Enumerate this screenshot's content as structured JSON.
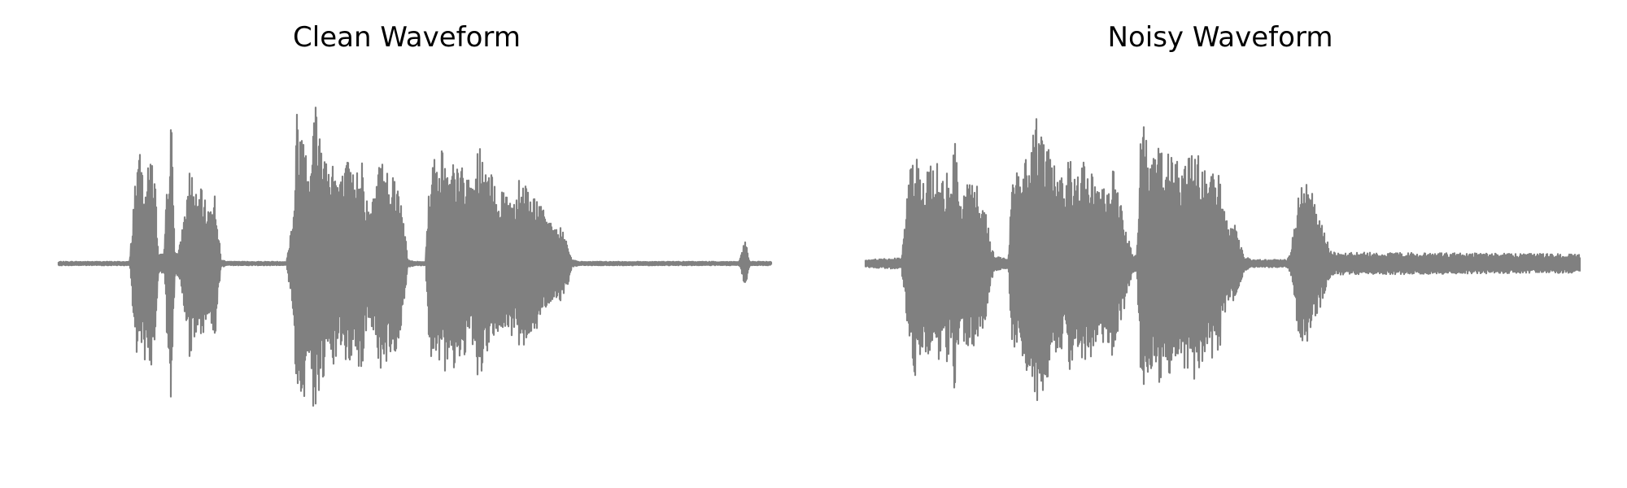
{
  "chart_data": [
    {
      "type": "line",
      "title": "Clean Waveform",
      "axes_visible": false,
      "color": "#808080",
      "ylim": [
        -1,
        1
      ],
      "envelope": [
        [
          0.0,
          0.01
        ],
        [
          0.1,
          0.01
        ],
        [
          0.105,
          0.32
        ],
        [
          0.11,
          0.6
        ],
        [
          0.115,
          0.58
        ],
        [
          0.12,
          0.52
        ],
        [
          0.125,
          0.5
        ],
        [
          0.13,
          0.62
        ],
        [
          0.135,
          0.5
        ],
        [
          0.14,
          0.05
        ],
        [
          0.148,
          0.05
        ],
        [
          0.153,
          0.5
        ],
        [
          0.158,
          0.82
        ],
        [
          0.163,
          0.1
        ],
        [
          0.168,
          0.05
        ],
        [
          0.175,
          0.22
        ],
        [
          0.18,
          0.38
        ],
        [
          0.185,
          0.55
        ],
        [
          0.19,
          0.4
        ],
        [
          0.195,
          0.35
        ],
        [
          0.2,
          0.4
        ],
        [
          0.205,
          0.35
        ],
        [
          0.21,
          0.3
        ],
        [
          0.215,
          0.38
        ],
        [
          0.22,
          0.38
        ],
        [
          0.228,
          0.02
        ],
        [
          0.24,
          0.01
        ],
        [
          0.32,
          0.01
        ],
        [
          0.33,
          0.3
        ],
        [
          0.335,
          0.88
        ],
        [
          0.34,
          0.7
        ],
        [
          0.345,
          0.8
        ],
        [
          0.35,
          0.6
        ],
        [
          0.355,
          0.65
        ],
        [
          0.36,
          0.92
        ],
        [
          0.365,
          0.75
        ],
        [
          0.37,
          0.7
        ],
        [
          0.375,
          0.6
        ],
        [
          0.38,
          0.55
        ],
        [
          0.385,
          0.6
        ],
        [
          0.39,
          0.5
        ],
        [
          0.395,
          0.45
        ],
        [
          0.4,
          0.5
        ],
        [
          0.405,
          0.55
        ],
        [
          0.41,
          0.55
        ],
        [
          0.415,
          0.45
        ],
        [
          0.42,
          0.55
        ],
        [
          0.425,
          0.65
        ],
        [
          0.43,
          0.4
        ],
        [
          0.435,
          0.3
        ],
        [
          0.44,
          0.35
        ],
        [
          0.445,
          0.4
        ],
        [
          0.45,
          0.6
        ],
        [
          0.455,
          0.55
        ],
        [
          0.46,
          0.58
        ],
        [
          0.465,
          0.48
        ],
        [
          0.47,
          0.5
        ],
        [
          0.475,
          0.45
        ],
        [
          0.48,
          0.4
        ],
        [
          0.49,
          0.02
        ],
        [
          0.5,
          0.01
        ],
        [
          0.515,
          0.01
        ],
        [
          0.52,
          0.45
        ],
        [
          0.525,
          0.58
        ],
        [
          0.53,
          0.55
        ],
        [
          0.535,
          0.65
        ],
        [
          0.54,
          0.62
        ],
        [
          0.545,
          0.52
        ],
        [
          0.55,
          0.45
        ],
        [
          0.555,
          0.58
        ],
        [
          0.56,
          0.5
        ],
        [
          0.565,
          0.58
        ],
        [
          0.57,
          0.48
        ],
        [
          0.575,
          0.45
        ],
        [
          0.58,
          0.42
        ],
        [
          0.585,
          0.55
        ],
        [
          0.59,
          0.65
        ],
        [
          0.595,
          0.55
        ],
        [
          0.6,
          0.55
        ],
        [
          0.605,
          0.45
        ],
        [
          0.61,
          0.5
        ],
        [
          0.615,
          0.4
        ],
        [
          0.62,
          0.35
        ],
        [
          0.625,
          0.42
        ],
        [
          0.63,
          0.38
        ],
        [
          0.635,
          0.4
        ],
        [
          0.64,
          0.35
        ],
        [
          0.645,
          0.5
        ],
        [
          0.65,
          0.45
        ],
        [
          0.655,
          0.48
        ],
        [
          0.66,
          0.38
        ],
        [
          0.665,
          0.35
        ],
        [
          0.67,
          0.4
        ],
        [
          0.675,
          0.3
        ],
        [
          0.68,
          0.32
        ],
        [
          0.685,
          0.22
        ],
        [
          0.69,
          0.25
        ],
        [
          0.695,
          0.2
        ],
        [
          0.7,
          0.18
        ],
        [
          0.705,
          0.2
        ],
        [
          0.71,
          0.15
        ],
        [
          0.715,
          0.12
        ],
        [
          0.72,
          0.02
        ],
        [
          0.73,
          0.01
        ],
        [
          0.955,
          0.01
        ],
        [
          0.96,
          0.07
        ],
        [
          0.963,
          0.15
        ],
        [
          0.966,
          0.08
        ],
        [
          0.97,
          0.01
        ],
        [
          1.0,
          0.01
        ]
      ]
    },
    {
      "type": "line",
      "title": "Noisy Waveform",
      "axes_visible": false,
      "color": "#808080",
      "ylim": [
        -1,
        1
      ],
      "envelope": [
        [
          0.0,
          0.02
        ],
        [
          0.05,
          0.03
        ],
        [
          0.055,
          0.2
        ],
        [
          0.06,
          0.45
        ],
        [
          0.065,
          0.58
        ],
        [
          0.07,
          0.62
        ],
        [
          0.075,
          0.5
        ],
        [
          0.08,
          0.45
        ],
        [
          0.085,
          0.5
        ],
        [
          0.09,
          0.55
        ],
        [
          0.095,
          0.5
        ],
        [
          0.1,
          0.55
        ],
        [
          0.105,
          0.6
        ],
        [
          0.11,
          0.45
        ],
        [
          0.115,
          0.55
        ],
        [
          0.12,
          0.4
        ],
        [
          0.125,
          0.75
        ],
        [
          0.13,
          0.45
        ],
        [
          0.135,
          0.3
        ],
        [
          0.14,
          0.55
        ],
        [
          0.145,
          0.45
        ],
        [
          0.15,
          0.5
        ],
        [
          0.155,
          0.45
        ],
        [
          0.16,
          0.35
        ],
        [
          0.165,
          0.38
        ],
        [
          0.17,
          0.25
        ],
        [
          0.175,
          0.1
        ],
        [
          0.18,
          0.05
        ],
        [
          0.19,
          0.03
        ],
        [
          0.2,
          0.03
        ],
        [
          0.205,
          0.45
        ],
        [
          0.21,
          0.48
        ],
        [
          0.215,
          0.52
        ],
        [
          0.22,
          0.55
        ],
        [
          0.225,
          0.58
        ],
        [
          0.23,
          0.55
        ],
        [
          0.235,
          0.7
        ],
        [
          0.24,
          0.8
        ],
        [
          0.245,
          0.75
        ],
        [
          0.25,
          0.65
        ],
        [
          0.255,
          0.62
        ],
        [
          0.26,
          0.6
        ],
        [
          0.265,
          0.55
        ],
        [
          0.27,
          0.45
        ],
        [
          0.275,
          0.48
        ],
        [
          0.28,
          0.4
        ],
        [
          0.285,
          0.6
        ],
        [
          0.29,
          0.55
        ],
        [
          0.295,
          0.5
        ],
        [
          0.3,
          0.45
        ],
        [
          0.305,
          0.55
        ],
        [
          0.31,
          0.52
        ],
        [
          0.315,
          0.55
        ],
        [
          0.32,
          0.45
        ],
        [
          0.325,
          0.48
        ],
        [
          0.33,
          0.4
        ],
        [
          0.335,
          0.45
        ],
        [
          0.34,
          0.42
        ],
        [
          0.345,
          0.55
        ],
        [
          0.35,
          0.45
        ],
        [
          0.355,
          0.35
        ],
        [
          0.36,
          0.28
        ],
        [
          0.365,
          0.2
        ],
        [
          0.37,
          0.1
        ],
        [
          0.375,
          0.05
        ],
        [
          0.38,
          0.05
        ],
        [
          0.385,
          0.65
        ],
        [
          0.39,
          0.8
        ],
        [
          0.395,
          0.62
        ],
        [
          0.4,
          0.6
        ],
        [
          0.405,
          0.58
        ],
        [
          0.41,
          0.65
        ],
        [
          0.415,
          0.6
        ],
        [
          0.42,
          0.55
        ],
        [
          0.425,
          0.6
        ],
        [
          0.43,
          0.55
        ],
        [
          0.435,
          0.6
        ],
        [
          0.44,
          0.45
        ],
        [
          0.445,
          0.55
        ],
        [
          0.45,
          0.6
        ],
        [
          0.455,
          0.55
        ],
        [
          0.46,
          0.65
        ],
        [
          0.465,
          0.6
        ],
        [
          0.47,
          0.55
        ],
        [
          0.475,
          0.5
        ],
        [
          0.48,
          0.45
        ],
        [
          0.485,
          0.55
        ],
        [
          0.49,
          0.4
        ],
        [
          0.495,
          0.5
        ],
        [
          0.5,
          0.3
        ],
        [
          0.505,
          0.25
        ],
        [
          0.51,
          0.2
        ],
        [
          0.515,
          0.22
        ],
        [
          0.52,
          0.18
        ],
        [
          0.525,
          0.1
        ],
        [
          0.53,
          0.04
        ],
        [
          0.54,
          0.02
        ],
        [
          0.59,
          0.02
        ],
        [
          0.595,
          0.05
        ],
        [
          0.6,
          0.2
        ],
        [
          0.605,
          0.35
        ],
        [
          0.61,
          0.4
        ],
        [
          0.615,
          0.45
        ],
        [
          0.62,
          0.42
        ],
        [
          0.625,
          0.38
        ],
        [
          0.63,
          0.3
        ],
        [
          0.635,
          0.25
        ],
        [
          0.64,
          0.2
        ],
        [
          0.645,
          0.15
        ],
        [
          0.65,
          0.08
        ],
        [
          0.655,
          0.06
        ],
        [
          1.0,
          0.05
        ]
      ]
    }
  ]
}
